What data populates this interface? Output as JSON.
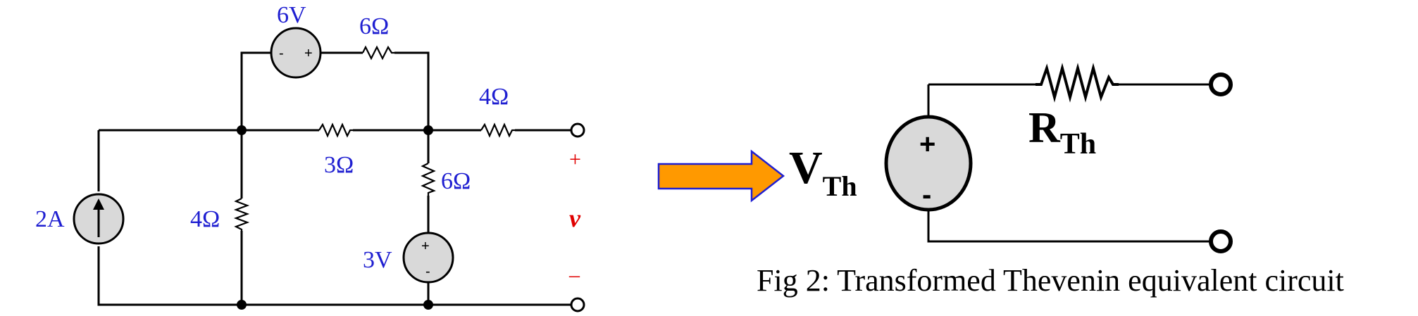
{
  "left_circuit": {
    "source_6v_label": "6V",
    "source_6v_minus": "-",
    "source_6v_plus": "+",
    "top_res_label": "6Ω",
    "right_res_label": "4Ω",
    "mid_res_label": "3Ω",
    "vert_res_label": "6Ω",
    "left_res_label": "4Ω",
    "source_2a_label": "2A",
    "source_3v_label": "3V",
    "source_3v_plus": "+",
    "source_3v_minus": "-",
    "out_plus": "+",
    "out_var": "v",
    "out_minus": "–"
  },
  "thevenin": {
    "vth_main": "V",
    "vth_sub": "Th",
    "rth_main": "R",
    "rth_sub": "Th",
    "src_plus": "+",
    "src_minus": "-"
  },
  "caption": "Fig 2: Transformed Thevenin equivalent circuit",
  "colors": {
    "label_blue": "#1f1fd1",
    "output_red": "#e00000",
    "arrow_fill": "#ff9900",
    "arrow_stroke": "#1f1fd1",
    "source_fill": "#d9d9d9"
  }
}
